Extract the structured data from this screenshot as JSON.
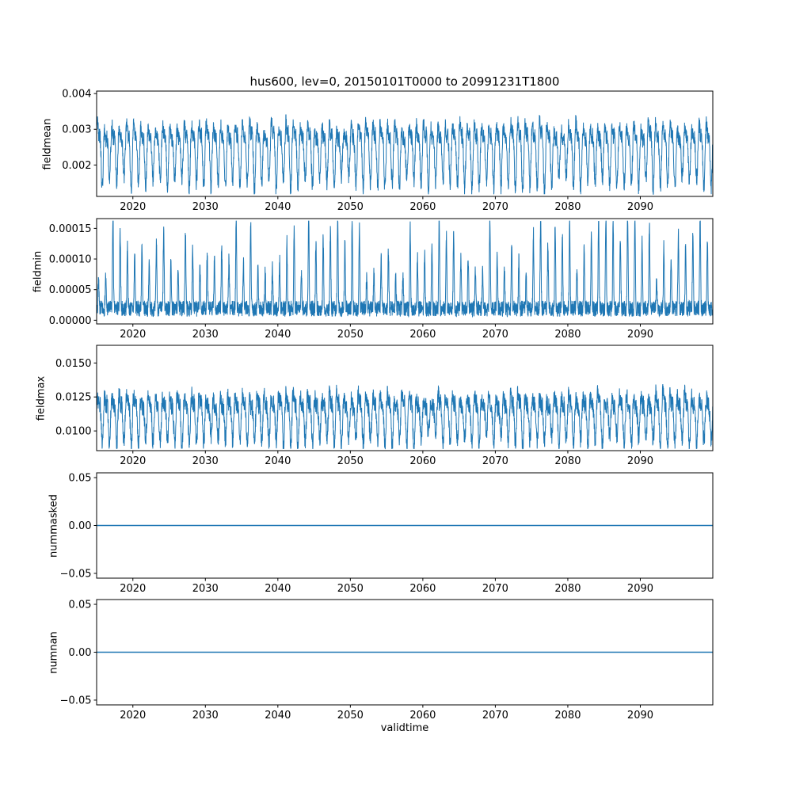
{
  "title": "hus600, lev=0, 20150101T0000 to 20991231T1800",
  "xlabel": "validtime",
  "colors": {
    "line": "#1f77b4",
    "axis": "#000000",
    "background": "#ffffff"
  },
  "x_axis": {
    "lim": [
      2015,
      2100
    ],
    "ticks": [
      2020,
      2030,
      2040,
      2050,
      2060,
      2070,
      2080,
      2090
    ],
    "tick_labels": [
      "2020",
      "2030",
      "2040",
      "2050",
      "2060",
      "2070",
      "2080",
      "2090"
    ]
  },
  "chart_data": [
    {
      "name": "fieldmean",
      "type": "line",
      "ylabel": "fieldmean",
      "ylim": [
        0.00112,
        0.00407
      ],
      "yticks": [
        0.002,
        0.003,
        0.004
      ],
      "ytick_labels": [
        "0.002",
        "0.003",
        "0.004"
      ],
      "series": {
        "kind": "seasonal_noise",
        "seed": 3,
        "n": 3600,
        "cycles": 85,
        "mean": 0.00245,
        "seasonal_amplitude": 0.00092,
        "noise": 0.00024,
        "env_min": 0.78,
        "env_max": 1.28,
        "clip": [
          0.00118,
          0.00402
        ]
      }
    },
    {
      "name": "fieldmin",
      "type": "line",
      "ylabel": "fieldmin",
      "ylim": [
        -6e-06,
        0.000166
      ],
      "yticks": [
        0.0,
        5e-05,
        0.0001,
        0.00015
      ],
      "ytick_labels": [
        "0.00000",
        "0.00005",
        "0.00010",
        "0.00015"
      ],
      "series": {
        "kind": "spiky",
        "seed": 7,
        "n": 4200,
        "cycles": 85,
        "base": 6e-06,
        "base_noise": 2.6e-05,
        "spike_amplitude": 0.000105,
        "sharpness": 6,
        "env_min": 0.45,
        "env_max": 1.5,
        "clip": [
          2e-06,
          0.000162
        ]
      }
    },
    {
      "name": "fieldmax",
      "type": "line",
      "ylabel": "fieldmax",
      "ylim": [
        0.00855,
        0.0163
      ],
      "yticks": [
        0.01,
        0.0125,
        0.015
      ],
      "ytick_labels": [
        "0.0100",
        "0.0125",
        "0.0150"
      ],
      "series": {
        "kind": "seasonal_noise",
        "seed": 11,
        "n": 3600,
        "cycles": 85,
        "mean": 0.0112,
        "seasonal_amplitude": 0.0019,
        "noise": 0.0007,
        "env_min": 0.75,
        "env_max": 1.33,
        "clip": [
          0.0087,
          0.0162
        ]
      }
    },
    {
      "name": "nummasked",
      "type": "line",
      "ylabel": "nummasked",
      "ylim": [
        -0.055,
        0.055
      ],
      "yticks": [
        -0.05,
        0.0,
        0.05
      ],
      "ytick_labels": [
        "−0.05",
        "0.00",
        "0.05"
      ],
      "series": {
        "kind": "constant",
        "value": 0
      }
    },
    {
      "name": "numnan",
      "type": "line",
      "ylabel": "numnan",
      "ylim": [
        -0.055,
        0.055
      ],
      "yticks": [
        -0.05,
        0.0,
        0.05
      ],
      "ytick_labels": [
        "−0.05",
        "0.00",
        "0.05"
      ],
      "series": {
        "kind": "constant",
        "value": 0
      }
    }
  ]
}
